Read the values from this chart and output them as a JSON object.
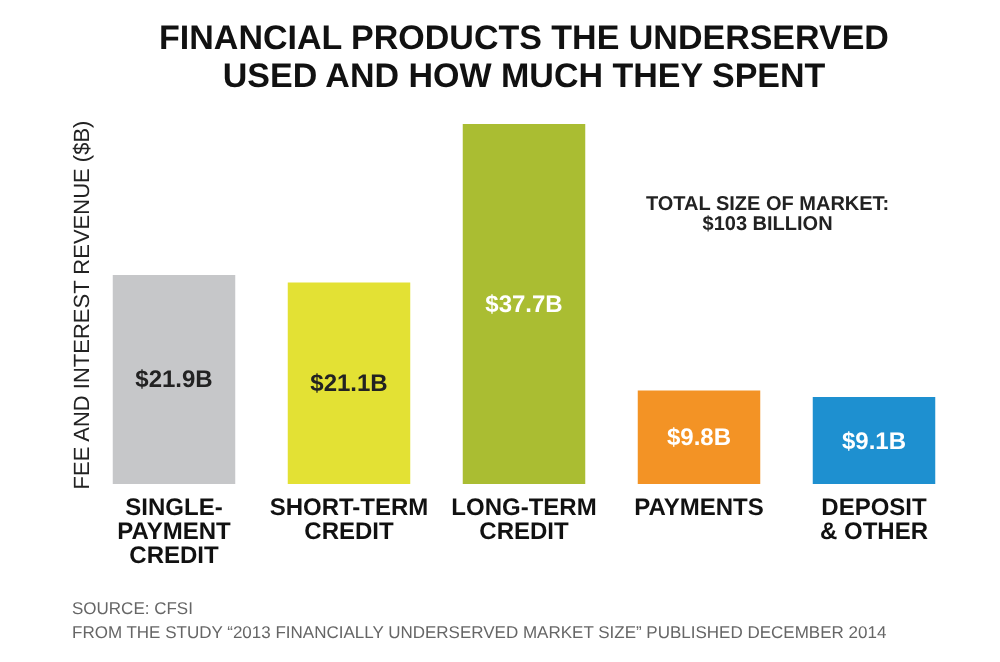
{
  "chart_data": {
    "type": "bar",
    "title": "FINANCIAL PRODUCTS THE UNDERSERVED\nUSED AND HOW MUCH THEY SPENT",
    "ylabel": "FEE AND INTEREST REVENUE ($B)",
    "categories": [
      "SINGLE-\nPAYMENT\nCREDIT",
      "SHORT-TERM\nCREDIT",
      "LONG-TERM\nCREDIT",
      "PAYMENTS",
      "DEPOSIT\n& OTHER"
    ],
    "values": [
      21.9,
      21.1,
      37.7,
      9.8,
      9.1
    ],
    "colors": [
      "#c6c7c9",
      "#e3e134",
      "#aabd32",
      "#f39325",
      "#1e90d0"
    ],
    "value_labels": [
      "$21.9B",
      "$21.1B",
      "$37.7B",
      "$9.8B",
      "$9.1B"
    ],
    "annotations": [
      "TOTAL SIZE OF MARKET:\n$103 BILLION",
      "SOURCE: CFSI",
      "FROM THE STUDY “2013 FINANCIALLY UNDERSERVED MARKET SIZE” PUBLISHED DECEMBER 2014"
    ]
  }
}
